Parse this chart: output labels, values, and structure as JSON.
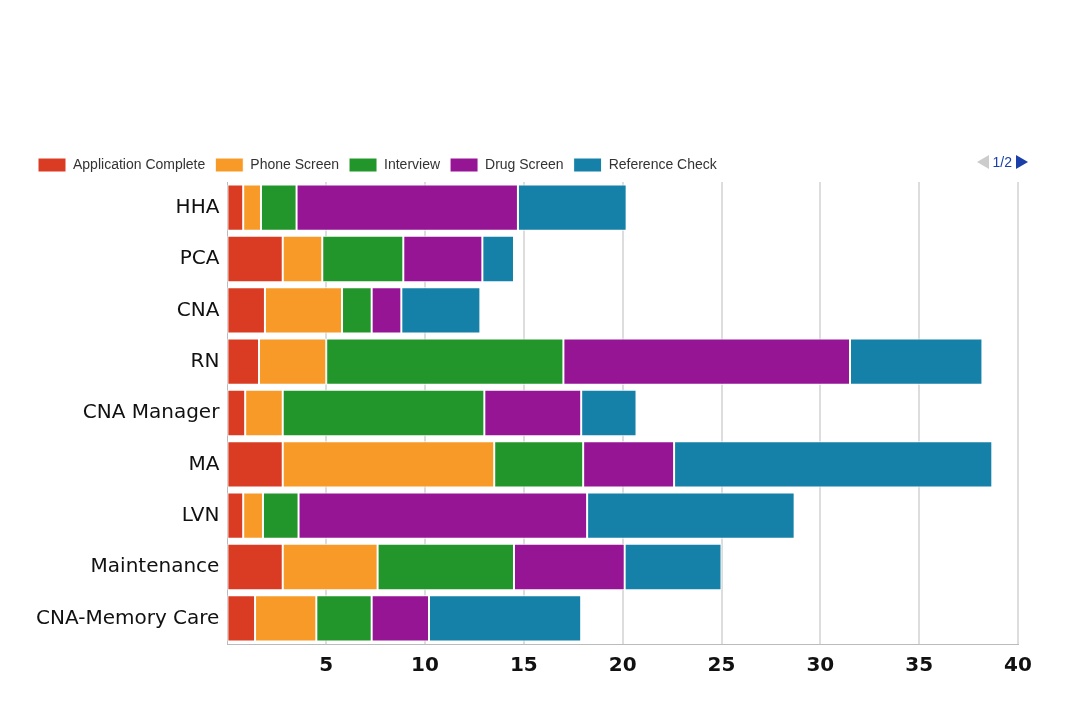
{
  "chart_data": {
    "type": "bar",
    "orientation": "horizontal",
    "stacked": true,
    "categories": [
      "HHA",
      "PCA",
      "CNA",
      "RN",
      "CNA Manager",
      "MA",
      "LVN",
      "Maintenance",
      "CNA-Memory Care"
    ],
    "series": [
      {
        "name": "Application Complete",
        "color": "#d93c22",
        "values": [
          0.8,
          2.8,
          1.9,
          1.6,
          0.9,
          2.8,
          0.8,
          2.8,
          1.4
        ]
      },
      {
        "name": "Phone Screen",
        "color": "#f89a28",
        "values": [
          0.9,
          2.0,
          3.9,
          3.4,
          1.9,
          10.7,
          1.0,
          4.8,
          3.1
        ]
      },
      {
        "name": "Interview",
        "color": "#22962a",
        "values": [
          1.8,
          4.1,
          1.5,
          12.0,
          10.2,
          4.5,
          1.8,
          6.9,
          2.8
        ]
      },
      {
        "name": "Drug Screen",
        "color": "#951595",
        "values": [
          11.2,
          4.0,
          1.5,
          14.5,
          4.9,
          4.6,
          14.6,
          5.6,
          2.9
        ]
      },
      {
        "name": "Reference Check",
        "color": "#1580a8",
        "values": [
          5.5,
          1.6,
          4.0,
          6.7,
          2.8,
          16.1,
          10.5,
          4.9,
          7.7
        ]
      }
    ],
    "xlim": [
      0,
      40
    ],
    "xticks": [
      5,
      10,
      15,
      20,
      25,
      30,
      35,
      40
    ],
    "grid": "x",
    "legend": "top left",
    "annotations": [
      "1/2"
    ]
  }
}
